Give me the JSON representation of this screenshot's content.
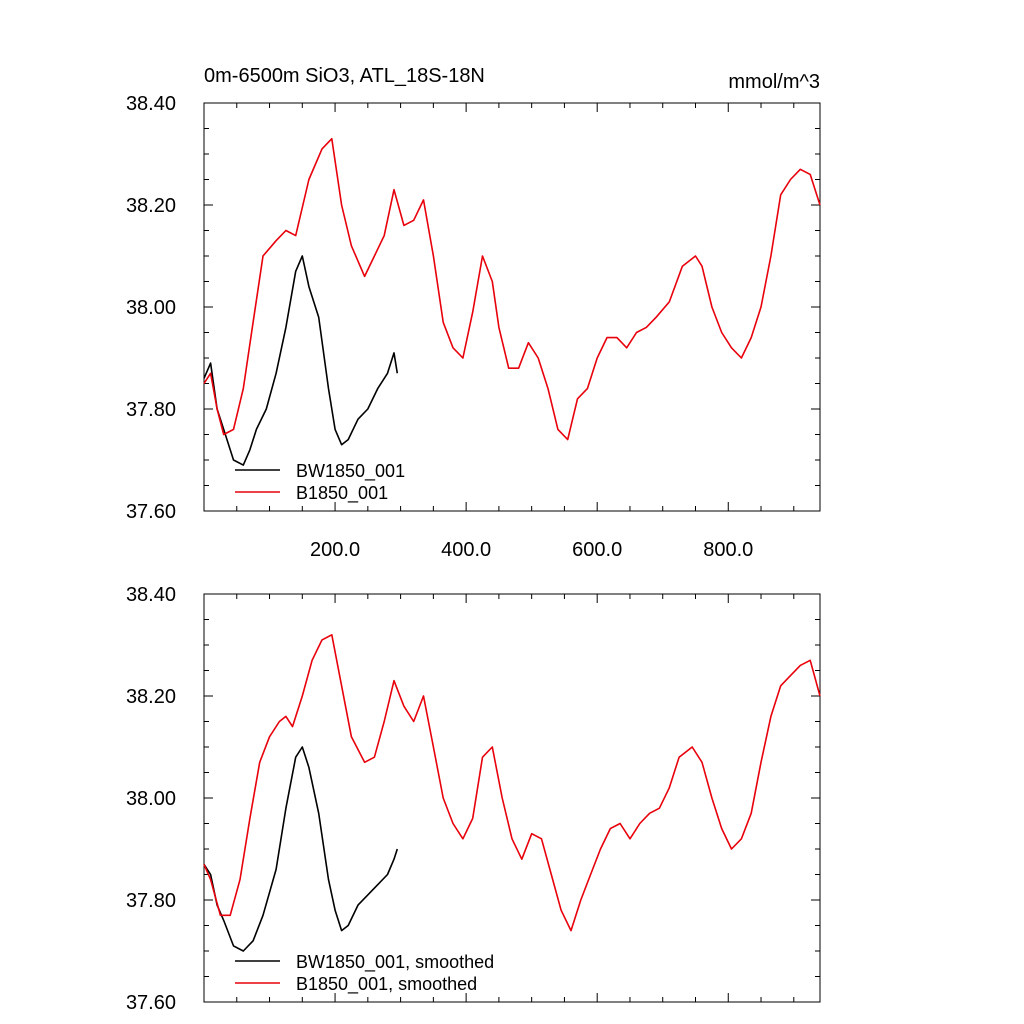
{
  "header": {
    "title": "0m-6500m SiO3, ATL_18S-18N",
    "units": "mmol/m^3"
  },
  "chart_data": [
    {
      "type": "line",
      "title": "0m-6500m SiO3, ATL_18S-18N",
      "units": "mmol/m^3",
      "xlim": [
        0,
        940
      ],
      "ylim": [
        37.6,
        38.4
      ],
      "y_ticks": [
        "37.60",
        "37.80",
        "38.00",
        "38.20",
        "38.40"
      ],
      "x_ticks": [
        "200.0",
        "400.0",
        "600.0",
        "800.0"
      ],
      "x_tick_values": [
        200,
        400,
        600,
        800
      ],
      "grid": false,
      "legend_position": "bottom-left",
      "series": [
        {
          "name": "BW1850_001",
          "color": "#000000",
          "x": [
            0,
            10,
            20,
            30,
            45,
            60,
            70,
            80,
            95,
            110,
            125,
            140,
            150,
            160,
            175,
            190,
            200,
            210,
            220,
            235,
            250,
            265,
            280,
            290,
            295
          ],
          "y": [
            37.86,
            37.89,
            37.8,
            37.76,
            37.7,
            37.69,
            37.72,
            37.76,
            37.8,
            37.87,
            37.96,
            38.07,
            38.1,
            38.04,
            37.98,
            37.84,
            37.76,
            37.73,
            37.74,
            37.78,
            37.8,
            37.84,
            37.87,
            37.91,
            37.87
          ]
        },
        {
          "name": "B1850_001",
          "color": "#e8000b",
          "x": [
            0,
            10,
            20,
            30,
            45,
            60,
            75,
            90,
            110,
            125,
            140,
            160,
            180,
            195,
            210,
            225,
            245,
            260,
            275,
            290,
            305,
            320,
            335,
            350,
            365,
            380,
            395,
            410,
            425,
            440,
            450,
            465,
            480,
            495,
            510,
            525,
            540,
            555,
            570,
            585,
            600,
            615,
            630,
            645,
            660,
            675,
            690,
            710,
            730,
            750,
            760,
            775,
            790,
            805,
            820,
            835,
            850,
            865,
            880,
            895,
            910,
            925,
            940
          ],
          "y": [
            37.85,
            37.87,
            37.8,
            37.75,
            37.76,
            37.84,
            37.97,
            38.1,
            38.13,
            38.15,
            38.14,
            38.25,
            38.31,
            38.33,
            38.2,
            38.12,
            38.06,
            38.1,
            38.14,
            38.23,
            38.16,
            38.17,
            38.21,
            38.1,
            37.97,
            37.92,
            37.9,
            37.99,
            38.1,
            38.05,
            37.96,
            37.88,
            37.88,
            37.93,
            37.9,
            37.84,
            37.76,
            37.74,
            37.82,
            37.84,
            37.9,
            37.94,
            37.94,
            37.92,
            37.95,
            37.96,
            37.98,
            38.01,
            38.08,
            38.1,
            38.08,
            38.0,
            37.95,
            37.92,
            37.9,
            37.94,
            38.0,
            38.1,
            38.22,
            38.25,
            38.27,
            38.26,
            38.2
          ]
        }
      ]
    },
    {
      "type": "line",
      "xlim": [
        0,
        940
      ],
      "ylim": [
        37.6,
        38.4
      ],
      "y_ticks": [
        "37.60",
        "37.80",
        "38.00",
        "38.20",
        "38.40"
      ],
      "grid": false,
      "legend_position": "bottom-left",
      "series": [
        {
          "name": "BW1850_001, smoothed",
          "color": "#000000",
          "x": [
            0,
            10,
            20,
            30,
            45,
            60,
            75,
            90,
            110,
            125,
            140,
            150,
            160,
            175,
            190,
            200,
            210,
            220,
            235,
            250,
            265,
            280,
            290,
            295
          ],
          "y": [
            37.87,
            37.85,
            37.79,
            37.76,
            37.71,
            37.7,
            37.72,
            37.77,
            37.86,
            37.98,
            38.08,
            38.1,
            38.06,
            37.97,
            37.84,
            37.78,
            37.74,
            37.75,
            37.79,
            37.81,
            37.83,
            37.85,
            37.88,
            37.9
          ]
        },
        {
          "name": "B1850_001, smoothed",
          "color": "#e8000b",
          "x": [
            0,
            10,
            25,
            40,
            55,
            70,
            85,
            100,
            115,
            125,
            135,
            150,
            165,
            180,
            195,
            210,
            225,
            245,
            260,
            275,
            290,
            305,
            320,
            335,
            350,
            365,
            380,
            395,
            410,
            425,
            440,
            455,
            470,
            485,
            500,
            515,
            530,
            545,
            560,
            575,
            590,
            605,
            620,
            635,
            650,
            665,
            680,
            695,
            710,
            725,
            745,
            760,
            775,
            790,
            805,
            820,
            835,
            850,
            865,
            880,
            895,
            910,
            925,
            940
          ],
          "y": [
            37.87,
            37.84,
            37.77,
            37.77,
            37.84,
            37.96,
            38.07,
            38.12,
            38.15,
            38.16,
            38.14,
            38.2,
            38.27,
            38.31,
            38.32,
            38.22,
            38.12,
            38.07,
            38.08,
            38.15,
            38.23,
            38.18,
            38.15,
            38.2,
            38.1,
            38.0,
            37.95,
            37.92,
            37.96,
            38.08,
            38.1,
            38.0,
            37.92,
            37.88,
            37.93,
            37.92,
            37.85,
            37.78,
            37.74,
            37.8,
            37.85,
            37.9,
            37.94,
            37.95,
            37.92,
            37.95,
            37.97,
            37.98,
            38.02,
            38.08,
            38.1,
            38.07,
            38.0,
            37.94,
            37.9,
            37.92,
            37.97,
            38.07,
            38.16,
            38.22,
            38.24,
            38.26,
            38.27,
            38.2
          ]
        }
      ]
    }
  ]
}
